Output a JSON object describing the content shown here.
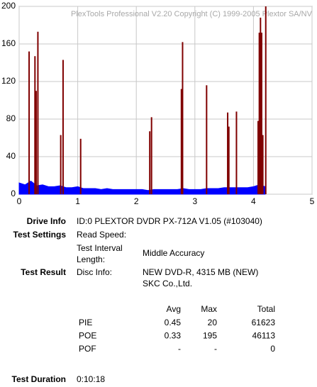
{
  "chart_data": {
    "type": "bar",
    "title": "PlexTools Professional V2.20 Copyright (C) 1999-2005 Plextor SA/NV",
    "xlim": [
      0,
      5
    ],
    "xticks": [
      0,
      1,
      2,
      3,
      4,
      5
    ],
    "ylim": [
      0,
      200
    ],
    "yticks": [
      0,
      40,
      80,
      120,
      160,
      200
    ],
    "grid": true,
    "series": [
      {
        "name": "PIE",
        "color": "#0000ff",
        "kind": "area",
        "x": [
          0,
          0.1,
          0.2,
          0.3,
          0.4,
          0.5,
          0.6,
          0.7,
          0.8,
          0.9,
          1.0,
          1.1,
          1.2,
          1.3,
          1.4,
          1.5,
          1.6,
          1.7,
          1.8,
          1.9,
          2.0,
          2.1,
          2.2,
          2.3,
          2.4,
          2.5,
          2.6,
          2.7,
          2.8,
          2.9,
          3.0,
          3.1,
          3.2,
          3.3,
          3.4,
          3.5,
          3.6,
          3.7,
          3.8,
          3.9,
          4.0,
          4.1,
          4.2
        ],
        "values": [
          12,
          10,
          14,
          9,
          10,
          8,
          8,
          9,
          7,
          7,
          8,
          6,
          6,
          6,
          5,
          6,
          5,
          5,
          5,
          5,
          5,
          5,
          4,
          5,
          5,
          5,
          5,
          5,
          6,
          5,
          5,
          5,
          6,
          6,
          6,
          7,
          7,
          7,
          7,
          7,
          8,
          10,
          8
        ]
      },
      {
        "name": "PO",
        "color": "#800000",
        "kind": "spike",
        "x": [
          0.17,
          0.27,
          0.29,
          0.32,
          0.71,
          0.75,
          1.05,
          2.23,
          2.26,
          2.77,
          2.79,
          3.2,
          3.56,
          3.58,
          3.71,
          4.08,
          4.1,
          4.12,
          4.14,
          4.16,
          4.21
        ],
        "values": [
          152,
          147,
          110,
          173,
          63,
          143,
          59,
          67,
          82,
          112,
          162,
          116,
          87,
          72,
          88,
          78,
          172,
          188,
          172,
          63,
          200
        ]
      }
    ]
  },
  "info": {
    "drive_label": "Drive Info",
    "drive_value": "ID:0 PLEXTOR DVDR PX-712A V1.05 (#103040)",
    "settings_label": "Test Settings",
    "read_speed": "Read Speed:",
    "interval_label": [
      "Test Interval",
      "Length:"
    ],
    "interval_value": "Middle Accuracy",
    "result_label": "Test Result",
    "disc_label": "Disc Info:",
    "disc_value": [
      "NEW DVD-R, 4315 MB (NEW)",
      "SKC Co.,Ltd."
    ],
    "table": {
      "header": [
        "Avg",
        "Max",
        "Total"
      ],
      "rows": [
        [
          "PIE",
          0.45,
          20,
          61623
        ],
        [
          "POE",
          0.33,
          195,
          46113
        ],
        [
          "POF",
          "-",
          "-",
          0
        ]
      ]
    },
    "duration_label": "Test Duration",
    "duration_value": "0:10:18"
  }
}
